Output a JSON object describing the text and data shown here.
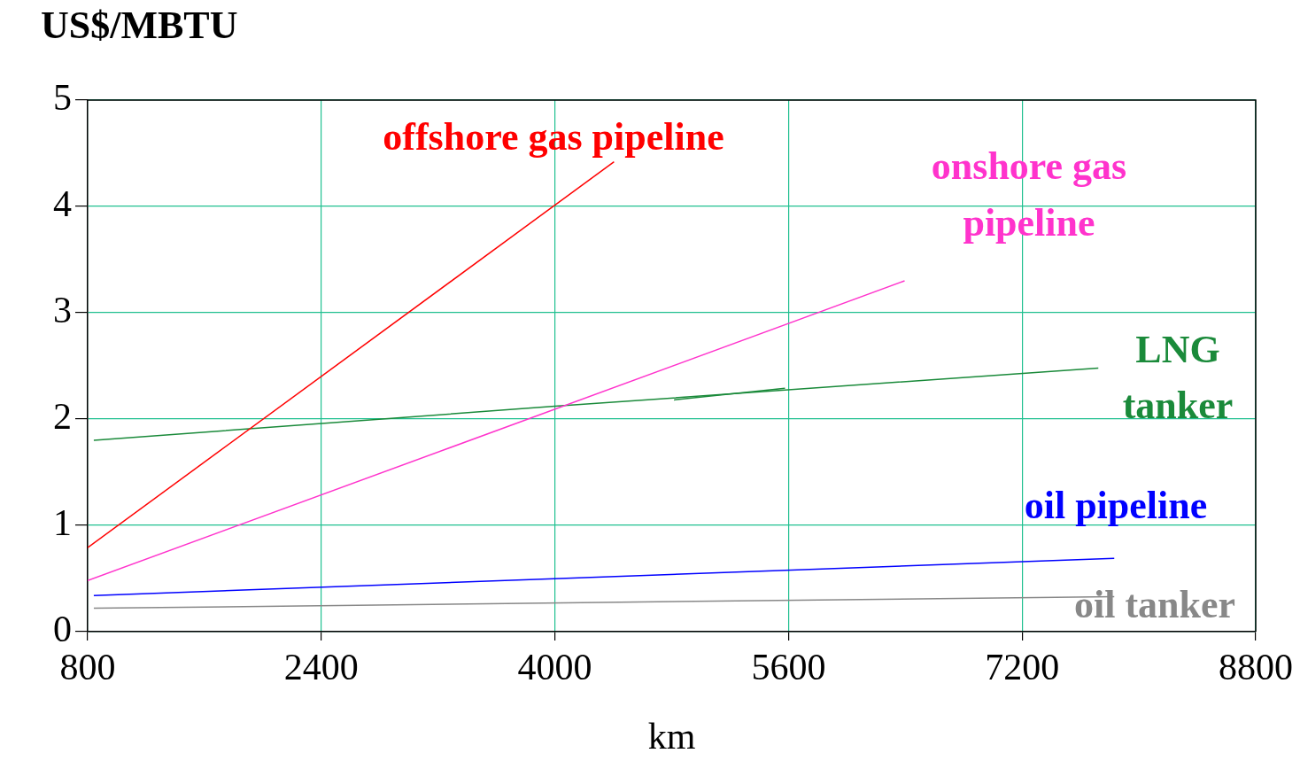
{
  "chart_data": {
    "type": "line",
    "ylabel": "US$/MBTU",
    "xlabel": "km",
    "xlim": [
      800,
      8800
    ],
    "xticks": [
      800,
      2400,
      4000,
      5600,
      7200,
      8800
    ],
    "ylim": [
      0,
      5
    ],
    "yticks": [
      0,
      1,
      2,
      3,
      4,
      5
    ],
    "grid": true,
    "legend": false,
    "marker": "none",
    "line_style": "solid",
    "series": [
      {
        "name": "offshore gas pipeline",
        "color": "#ff0000",
        "x": [
          800,
          4405
        ],
        "values": [
          0.79,
          4.42
        ]
      },
      {
        "name": "onshore gas pipeline",
        "color": "#ff33cc",
        "x": [
          800,
          6395
        ],
        "values": [
          0.48,
          3.3
        ]
      },
      {
        "name": "LNG tanker",
        "color": "#1a8a3a",
        "x": [
          842,
          4000,
          7722
        ],
        "values": [
          1.8,
          2.12,
          2.48
        ]
      },
      {
        "color": "#1a8a3a",
        "x": [
          4816,
          5576
        ],
        "values": [
          2.18,
          2.29
        ]
      },
      {
        "name": "oil pipeline",
        "color": "#0000ff",
        "x": [
          842,
          7831
        ],
        "values": [
          0.34,
          0.69
        ]
      },
      {
        "name": "oil tanker",
        "color": "#888888",
        "x": [
          842,
          7831
        ],
        "values": [
          0.22,
          0.33
        ]
      }
    ]
  }
}
